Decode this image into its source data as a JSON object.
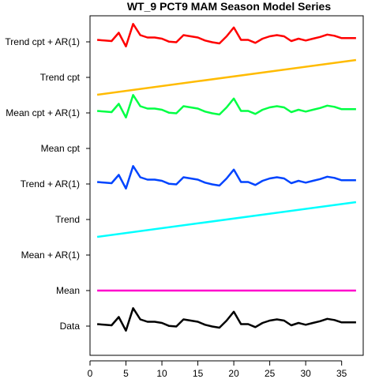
{
  "chart_data": {
    "type": "line",
    "title": "WT_9 PCT9 MAM Season Model Series",
    "xlabel": "",
    "ylabel": "",
    "xlim": [
      0,
      38
    ],
    "x_ticks": [
      0,
      5,
      10,
      15,
      20,
      25,
      30,
      35
    ],
    "row_labels": [
      "Data",
      "Mean",
      "Mean + AR(1)",
      "Trend",
      "Trend + AR(1)",
      "Mean cpt",
      "Mean cpt + AR(1)",
      "Trend cpt",
      "Trend cpt + AR(1)"
    ],
    "data_pattern": [
      0.14,
      0.13,
      0.12,
      0.26,
      0.03,
      0.41,
      0.22,
      0.18,
      0.18,
      0.16,
      0.11,
      0.1,
      0.22,
      0.2,
      0.18,
      0.13,
      0.1,
      0.08,
      0.2,
      0.35,
      0.14,
      0.14,
      0.09,
      0.16,
      0.2,
      0.22,
      0.2,
      0.12,
      0.16,
      0.13,
      0.16,
      0.19,
      0.23,
      0.21,
      0.17,
      0.17,
      0.17
    ],
    "series": [
      {
        "row": "Data",
        "color": "#000000",
        "style": "data"
      },
      {
        "row": "Mean",
        "color": "#ff00cc",
        "style": "flat"
      },
      {
        "row": "Trend",
        "color": "#00ffff",
        "style": "trend"
      },
      {
        "row": "Trend + AR(1)",
        "color": "#0044ff",
        "style": "data"
      },
      {
        "row": "Mean cpt + AR(1)",
        "color": "#00ff44",
        "style": "data"
      },
      {
        "row": "Trend cpt",
        "color": "#ffbb00",
        "style": "trend"
      },
      {
        "row": "Trend cpt + AR(1)",
        "color": "#ff0000",
        "style": "data"
      }
    ]
  }
}
